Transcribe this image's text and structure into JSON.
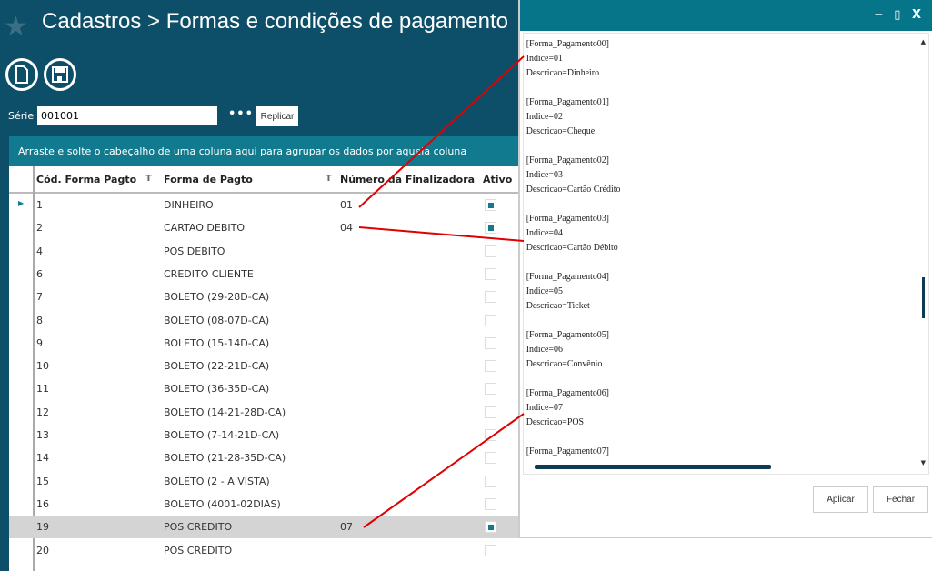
{
  "header": {
    "title": "Cadastros > Formas e condições de pagamento"
  },
  "toolbar": {
    "new": "new-document",
    "save": "save"
  },
  "serie": {
    "label": "Série",
    "value": "001001",
    "more": "•••",
    "replicar": "Replicar"
  },
  "grid": {
    "group_hint": "Arraste e solte o cabeçalho de uma coluna aqui para agrupar os dados por aquela coluna",
    "columns": [
      "Cód. Forma Pagto",
      "Forma de Pagto",
      "Número da Finalizadora",
      "Ativo"
    ],
    "rows": [
      {
        "cod": "1",
        "forma": "DINHEIRO",
        "num": "01",
        "ativo": true
      },
      {
        "cod": "2",
        "forma": "CARTAO DEBITO",
        "num": "04",
        "ativo": true
      },
      {
        "cod": "4",
        "forma": "POS DEBITO",
        "num": "",
        "ativo": false
      },
      {
        "cod": "6",
        "forma": "CREDITO CLIENTE",
        "num": "",
        "ativo": false
      },
      {
        "cod": "7",
        "forma": "BOLETO (29-28D-CA)",
        "num": "",
        "ativo": false
      },
      {
        "cod": "8",
        "forma": "BOLETO (08-07D-CA)",
        "num": "",
        "ativo": false
      },
      {
        "cod": "9",
        "forma": "BOLETO (15-14D-CA)",
        "num": "",
        "ativo": false
      },
      {
        "cod": "10",
        "forma": "BOLETO (22-21D-CA)",
        "num": "",
        "ativo": false
      },
      {
        "cod": "11",
        "forma": "BOLETO (36-35D-CA)",
        "num": "",
        "ativo": false
      },
      {
        "cod": "12",
        "forma": "BOLETO (14-21-28D-CA)",
        "num": "",
        "ativo": false
      },
      {
        "cod": "13",
        "forma": "BOLETO (7-14-21D-CA)",
        "num": "",
        "ativo": false
      },
      {
        "cod": "14",
        "forma": "BOLETO (21-28-35D-CA)",
        "num": "",
        "ativo": false
      },
      {
        "cod": "15",
        "forma": "BOLETO (2 - A VISTA)",
        "num": "",
        "ativo": false
      },
      {
        "cod": "16",
        "forma": "BOLETO (4001-02DIAS)",
        "num": "",
        "ativo": false
      },
      {
        "cod": "19",
        "forma": "POS CREDITO",
        "num": "07",
        "ativo": true,
        "selected": true
      },
      {
        "cod": "20",
        "forma": "POS CREDITO",
        "num": "",
        "ativo": false
      }
    ]
  },
  "dialog": {
    "controls": "‒ ▯ X",
    "text": "[Forma_Pagamento00]\nIndice=01\nDescricao=Dinheiro\n\n[Forma_Pagamento01]\nIndice=02\nDescricao=Cheque\n\n[Forma_Pagamento02]\nIndice=03\nDescricao=Cartão Crédito\n\n[Forma_Pagamento03]\nIndice=04\nDescricao=Cartão Débito\n\n[Forma_Pagamento04]\nIndice=05\nDescricao=Ticket\n\n[Forma_Pagamento05]\nIndice=06\nDescricao=Convênio\n\n[Forma_Pagamento06]\nIndice=07\nDescricao=POS\n\n[Forma_Pagamento07]",
    "aplicar": "Aplicar",
    "fechar": "Fechar"
  },
  "colors": {
    "background": "#0d4f68",
    "accent": "#127a8e",
    "dialog_title": "#067489",
    "annotation": "#e00000"
  }
}
